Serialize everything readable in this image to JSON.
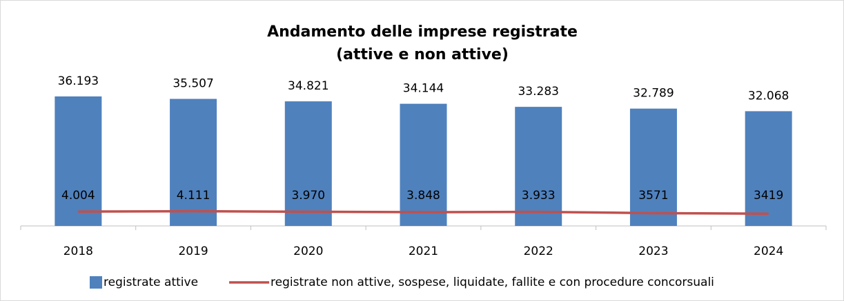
{
  "chart_data": {
    "type": "bar",
    "title": [
      "Andamento delle imprese registrate",
      "(attive e non attive)"
    ],
    "categories": [
      "2018",
      "2019",
      "2020",
      "2021",
      "2022",
      "2023",
      "2024"
    ],
    "series": [
      {
        "name": "registrate attive",
        "type": "bar",
        "color": "#4f81bd",
        "values": [
          36193,
          35507,
          34821,
          34144,
          33283,
          32789,
          32068
        ],
        "value_labels": [
          "36.193",
          "35.507",
          "34.821",
          "34.144",
          "33.283",
          "32.789",
          "32.068"
        ]
      },
      {
        "name": "registrate non attive, sospese, liquidate, fallite e con procedure concorsuali",
        "type": "line",
        "color": "#c0504d",
        "values": [
          4004,
          4111,
          3970,
          3848,
          3933,
          3571,
          3419
        ],
        "value_labels": [
          "4.004",
          "4.111",
          "3.970",
          "3.848",
          "3.933",
          "3571",
          "3419"
        ]
      }
    ],
    "legend": "bottom"
  }
}
